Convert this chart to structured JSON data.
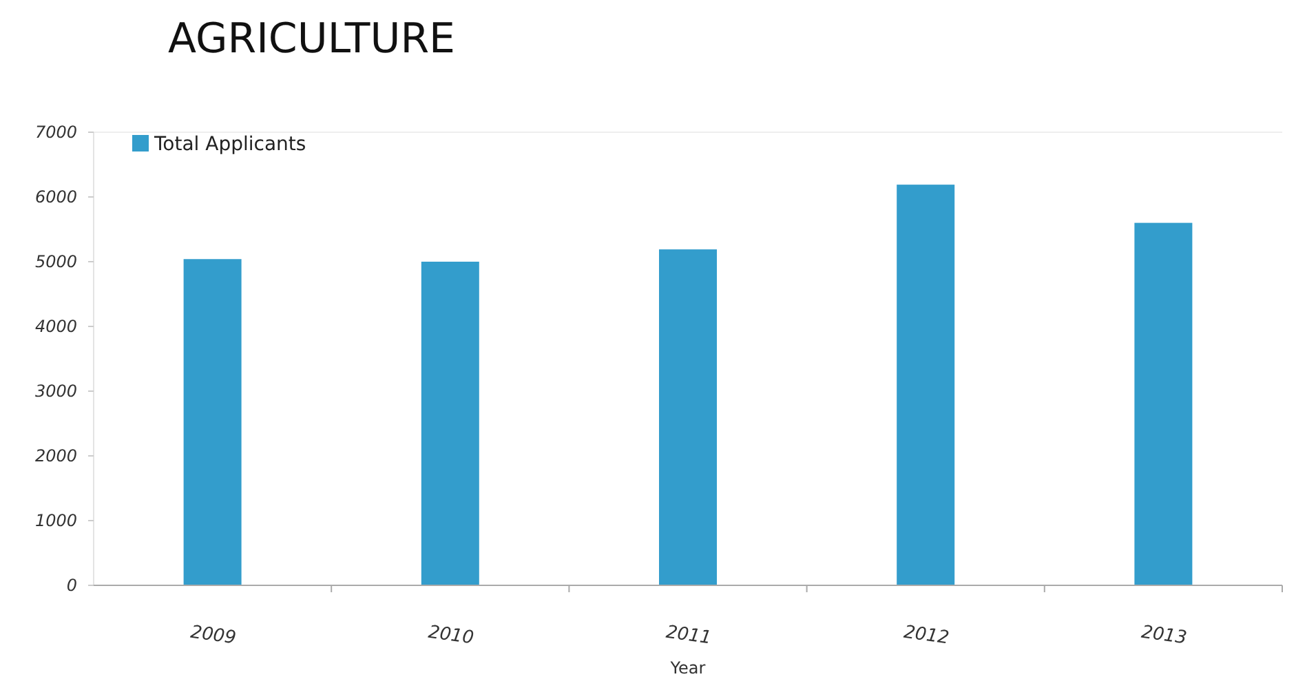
{
  "chart_data": {
    "type": "bar",
    "title": "AGRICULTURE",
    "xlabel": "Year",
    "categories": [
      "2009",
      "2010",
      "2011",
      "2012",
      "2013"
    ],
    "series": [
      {
        "name": "Total Applicants",
        "color": "#339dcc",
        "values": [
          5040,
          5000,
          5190,
          6190,
          5600
        ]
      }
    ],
    "ylim": [
      0,
      7000
    ],
    "yticks": [
      0,
      1000,
      2000,
      3000,
      4000,
      5000,
      6000,
      7000
    ],
    "legend": "top left",
    "grid": false
  }
}
